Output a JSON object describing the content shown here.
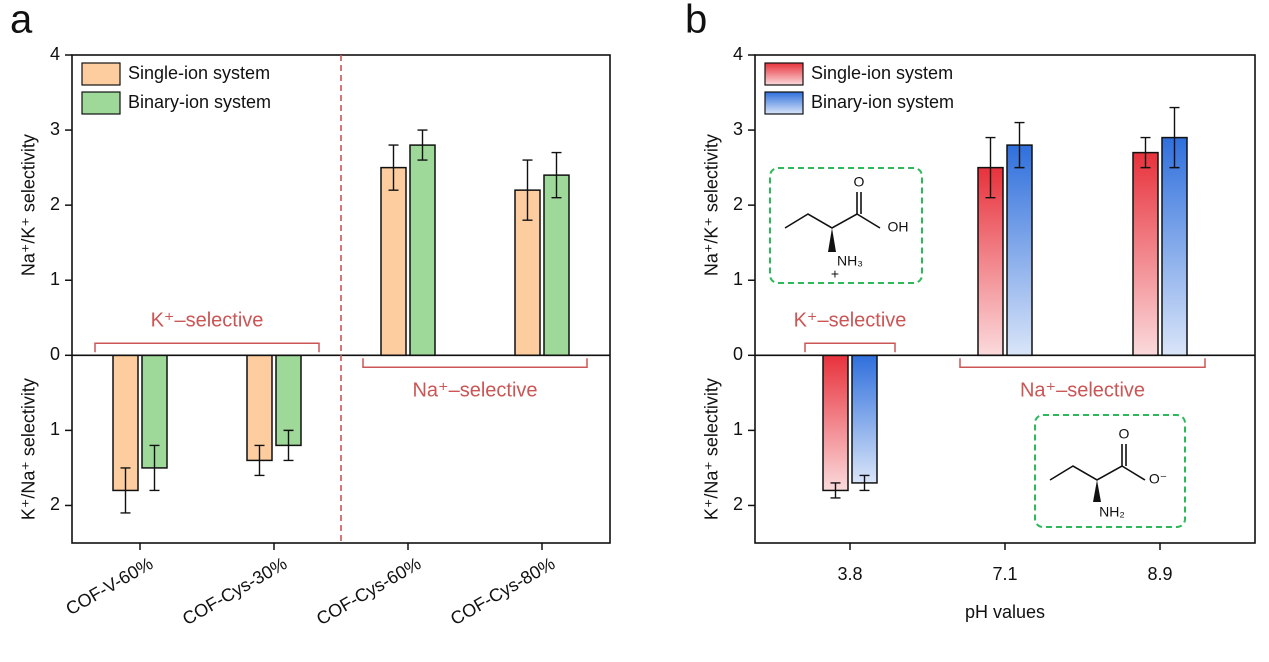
{
  "chart_data": [
    {
      "type": "bar",
      "panel": "a",
      "categories": [
        "COF-V-60%",
        "COF-Cys-30%",
        "COF-Cys-60%",
        "COF-Cys-80%"
      ],
      "series": [
        {
          "name": "Single-ion system",
          "color": "#fdcc9f",
          "values": [
            -1.8,
            -1.4,
            2.5,
            2.2
          ],
          "errors": [
            0.3,
            0.2,
            0.3,
            0.4
          ]
        },
        {
          "name": "Binary-ion system",
          "color": "#9ed99a",
          "values": [
            -1.5,
            -1.2,
            2.8,
            2.4
          ],
          "errors": [
            0.3,
            0.2,
            0.2,
            0.3
          ]
        }
      ],
      "ylim": [
        -2.5,
        4
      ],
      "yticks": [
        4,
        3,
        2,
        1,
        0,
        {
          "value": -1,
          "label": "1"
        },
        {
          "value": -2,
          "label": "2"
        }
      ],
      "ylabel_upper": "Na⁺/K⁺ selectivity",
      "ylabel_lower": "K⁺/Na⁺ selectivity",
      "annotations": [
        "K⁺–selective",
        "Na⁺–selective"
      ],
      "legend": "upper left",
      "gradient": false,
      "divider": true,
      "rotate_xticks": true
    },
    {
      "type": "bar",
      "panel": "b",
      "categories": [
        "3.8",
        "7.1",
        "8.9"
      ],
      "xlabel": "pH values",
      "series": [
        {
          "name": "Single-ion system",
          "color": "#e8323c",
          "values": [
            -1.8,
            2.5,
            2.7
          ],
          "errors": [
            0.1,
            0.4,
            0.2
          ]
        },
        {
          "name": "Binary-ion system",
          "color": "#2f6fdc",
          "values": [
            -1.7,
            2.8,
            2.9
          ],
          "errors": [
            0.1,
            0.3,
            0.4
          ]
        }
      ],
      "ylim": [
        -2.5,
        4
      ],
      "yticks": [
        4,
        3,
        2,
        1,
        0,
        {
          "value": -1,
          "label": "1"
        },
        {
          "value": -2,
          "label": "2"
        }
      ],
      "ylabel_upper": "Na⁺/K⁺ selectivity",
      "ylabel_lower": "K⁺/Na⁺ selectivity",
      "annotations": [
        "K⁺–selective",
        "Na⁺–selective"
      ],
      "legend": "upper left",
      "gradient": true,
      "divider": false,
      "rotate_xticks": false,
      "molecules": [
        {
          "labels": [
            "O",
            "OH",
            "NH₃",
            "+"
          ]
        },
        {
          "labels": [
            "O",
            "O⁻",
            "NH₂"
          ]
        }
      ]
    }
  ]
}
